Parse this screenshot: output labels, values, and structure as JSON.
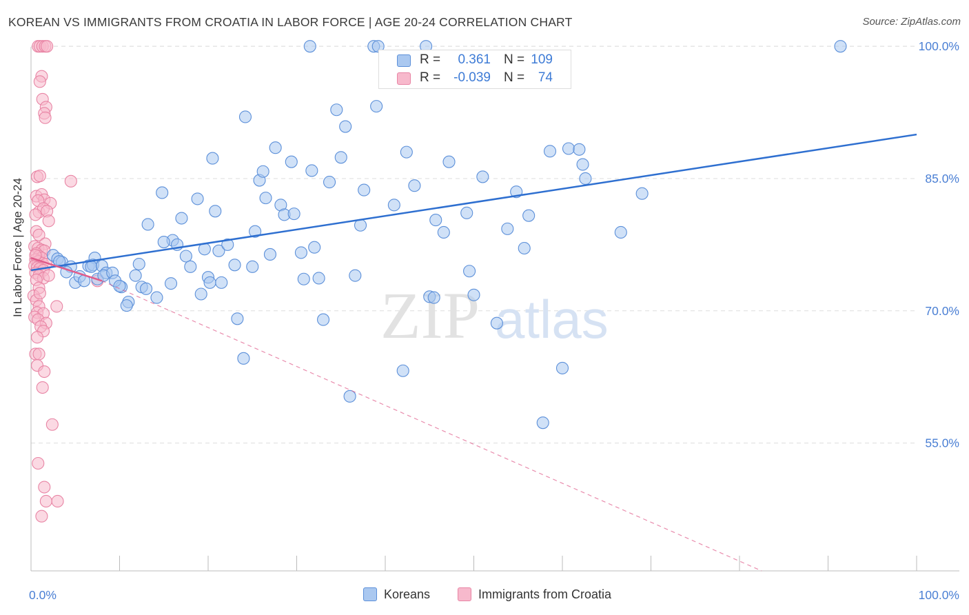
{
  "title": "KOREAN VS IMMIGRANTS FROM CROATIA IN LABOR FORCE | AGE 20-24 CORRELATION CHART",
  "source": "Source: ZipAtlas.com",
  "watermark": {
    "zip": "ZIP",
    "atlas": "atlas"
  },
  "colors": {
    "blue_fill": "#aac8f0",
    "blue_stroke": "#5b8fd9",
    "blue_line": "#2e6fd0",
    "pink_fill": "#f7b9cc",
    "pink_stroke": "#e884a4",
    "pink_line": "#e05b8a",
    "tick_label": "#4a7fd4",
    "grid": "#dddddd"
  },
  "legend": {
    "rows": [
      {
        "r_label": "R =",
        "r_value": "0.361",
        "n_label": "N =",
        "n_value": "109"
      },
      {
        "r_label": "R =",
        "r_value": "-0.039",
        "n_label": "N =",
        "n_value": "74"
      }
    ]
  },
  "bottom_legend": {
    "koreans": "Koreans",
    "croatia": "Immigrants from Croatia"
  },
  "chart_data": {
    "type": "scatter",
    "title": "KOREAN VS IMMIGRANTS FROM CROATIA IN LABOR FORCE | AGE 20-24 CORRELATION CHART",
    "xlabel": "",
    "ylabel": "In Labor Force | Age 20-24",
    "xlim": [
      0,
      100
    ],
    "ylim": [
      40.5,
      101.5
    ],
    "x_tick_labels": [
      "0.0%",
      "100.0%"
    ],
    "y_ticks": [
      55,
      70,
      85,
      100
    ],
    "y_tick_labels": [
      "55.0%",
      "70.0%",
      "85.0%",
      "100.0%"
    ],
    "grid": true,
    "legend_position": "top-center",
    "series": [
      {
        "name": "Koreans",
        "trend": {
          "x0": 0,
          "y0": 74.6,
          "x1": 100,
          "y1": 90.0,
          "style": "solid"
        },
        "points": [
          [
            2.5,
            76.3
          ],
          [
            3.0,
            75.9
          ],
          [
            3.5,
            75.5
          ],
          [
            4.5,
            75.0
          ],
          [
            4.0,
            74.4
          ],
          [
            5.0,
            73.2
          ],
          [
            6.5,
            75.1
          ],
          [
            7.2,
            76.0
          ],
          [
            7.0,
            75.2
          ],
          [
            6.8,
            75.0
          ],
          [
            8.0,
            75.1
          ],
          [
            7.5,
            73.6
          ],
          [
            8.5,
            74.3
          ],
          [
            8.2,
            74.0
          ],
          [
            9.2,
            74.3
          ],
          [
            10.2,
            72.7
          ],
          [
            9.5,
            73.4
          ],
          [
            11.0,
            71.0
          ],
          [
            10.8,
            70.6
          ],
          [
            12.2,
            75.3
          ],
          [
            11.8,
            74.0
          ],
          [
            12.5,
            72.7
          ],
          [
            13.0,
            72.5
          ],
          [
            14.2,
            71.5
          ],
          [
            13.2,
            79.8
          ],
          [
            14.8,
            83.4
          ],
          [
            16.0,
            78.0
          ],
          [
            15.8,
            73.1
          ],
          [
            16.5,
            77.5
          ],
          [
            17.0,
            80.5
          ],
          [
            17.5,
            76.2
          ],
          [
            18.0,
            75.0
          ],
          [
            18.8,
            82.7
          ],
          [
            19.2,
            71.9
          ],
          [
            19.6,
            77.0
          ],
          [
            20.0,
            73.8
          ],
          [
            20.2,
            73.2
          ],
          [
            20.8,
            81.3
          ],
          [
            21.2,
            76.8
          ],
          [
            21.5,
            73.2
          ],
          [
            22.2,
            77.5
          ],
          [
            23.0,
            75.2
          ],
          [
            23.3,
            69.1
          ],
          [
            24.0,
            64.6
          ],
          [
            24.2,
            92.0
          ],
          [
            25.0,
            75.0
          ],
          [
            25.3,
            79.0
          ],
          [
            25.8,
            84.8
          ],
          [
            26.2,
            85.8
          ],
          [
            27.0,
            76.4
          ],
          [
            27.6,
            88.5
          ],
          [
            28.2,
            82.0
          ],
          [
            28.6,
            80.9
          ],
          [
            29.4,
            86.9
          ],
          [
            29.7,
            81.0
          ],
          [
            30.5,
            76.6
          ],
          [
            30.8,
            73.6
          ],
          [
            31.7,
            85.9
          ],
          [
            32.0,
            77.2
          ],
          [
            32.5,
            73.7
          ],
          [
            31.5,
            100.0
          ],
          [
            33.0,
            69.0
          ],
          [
            33.7,
            84.6
          ],
          [
            34.5,
            92.8
          ],
          [
            35.0,
            87.4
          ],
          [
            35.5,
            90.9
          ],
          [
            36.6,
            74.0
          ],
          [
            37.2,
            79.7
          ],
          [
            37.6,
            83.7
          ],
          [
            39.0,
            93.2
          ],
          [
            38.7,
            100.0
          ],
          [
            39.2,
            100.0
          ],
          [
            41.0,
            82.0
          ],
          [
            42.4,
            88.0
          ],
          [
            42.0,
            63.2
          ],
          [
            43.3,
            84.2
          ],
          [
            45.0,
            71.6
          ],
          [
            45.5,
            71.5
          ],
          [
            45.7,
            80.3
          ],
          [
            46.6,
            78.9
          ],
          [
            47.2,
            86.9
          ],
          [
            49.2,
            81.1
          ],
          [
            49.5,
            74.5
          ],
          [
            50.0,
            71.8
          ],
          [
            51.0,
            85.2
          ],
          [
            52.6,
            68.6
          ],
          [
            53.8,
            79.3
          ],
          [
            54.8,
            83.5
          ],
          [
            55.7,
            77.1
          ],
          [
            56.2,
            80.8
          ],
          [
            60.0,
            63.5
          ],
          [
            58.6,
            88.1
          ],
          [
            60.7,
            88.4
          ],
          [
            61.9,
            88.3
          ],
          [
            62.3,
            86.6
          ],
          [
            62.6,
            85.0
          ],
          [
            66.6,
            78.9
          ],
          [
            69.0,
            83.3
          ],
          [
            91.4,
            100.0
          ],
          [
            57.8,
            57.3
          ],
          [
            36.0,
            60.3
          ],
          [
            26.5,
            82.8
          ],
          [
            15.0,
            77.8
          ],
          [
            10.0,
            72.8
          ],
          [
            5.5,
            73.9
          ],
          [
            6.0,
            73.4
          ],
          [
            3.2,
            75.6
          ],
          [
            20.5,
            87.3
          ],
          [
            44.6,
            100.0
          ]
        ]
      },
      {
        "name": "Immigrants from Croatia",
        "trend_solid": {
          "x0": 0,
          "y0": 76.0,
          "x1": 8,
          "y1": 73.4,
          "style": "solid"
        },
        "trend_dashed": {
          "x0": 8,
          "y0": 73.4,
          "x1": 82.5,
          "y1": 40.5,
          "style": "dashed"
        },
        "points": [
          [
            0.8,
            100.0
          ],
          [
            1.0,
            100.0
          ],
          [
            1.3,
            100.0
          ],
          [
            1.6,
            100.0
          ],
          [
            1.8,
            100.0
          ],
          [
            1.2,
            96.6
          ],
          [
            1.0,
            96.0
          ],
          [
            1.3,
            94.0
          ],
          [
            1.7,
            93.1
          ],
          [
            1.5,
            92.4
          ],
          [
            1.6,
            91.9
          ],
          [
            0.7,
            85.2
          ],
          [
            1.0,
            85.3
          ],
          [
            4.5,
            84.7
          ],
          [
            0.6,
            83.0
          ],
          [
            1.2,
            83.2
          ],
          [
            1.5,
            82.6
          ],
          [
            2.2,
            82.2
          ],
          [
            0.8,
            82.5
          ],
          [
            0.9,
            81.2
          ],
          [
            1.4,
            81.6
          ],
          [
            1.8,
            81.3
          ],
          [
            0.5,
            80.9
          ],
          [
            2.0,
            80.2
          ],
          [
            0.6,
            79.0
          ],
          [
            0.9,
            78.6
          ],
          [
            1.6,
            77.6
          ],
          [
            0.4,
            77.3
          ],
          [
            0.8,
            77.1
          ],
          [
            1.2,
            76.9
          ],
          [
            1.5,
            76.8
          ],
          [
            0.6,
            76.5
          ],
          [
            0.9,
            76.2
          ],
          [
            1.2,
            76.0
          ],
          [
            0.5,
            75.8
          ],
          [
            0.8,
            75.6
          ],
          [
            1.3,
            75.4
          ],
          [
            1.7,
            75.3
          ],
          [
            0.4,
            75.1
          ],
          [
            0.7,
            74.9
          ],
          [
            1.0,
            74.8
          ],
          [
            1.4,
            74.6
          ],
          [
            0.5,
            74.3
          ],
          [
            0.9,
            74.0
          ],
          [
            1.4,
            73.7
          ],
          [
            2.0,
            74.0
          ],
          [
            0.6,
            73.5
          ],
          [
            7.5,
            73.4
          ],
          [
            0.9,
            72.6
          ],
          [
            0.3,
            71.7
          ],
          [
            0.6,
            71.2
          ],
          [
            0.9,
            70.5
          ],
          [
            2.9,
            70.5
          ],
          [
            0.7,
            69.8
          ],
          [
            1.4,
            69.7
          ],
          [
            0.4,
            69.3
          ],
          [
            0.8,
            69.0
          ],
          [
            1.7,
            68.6
          ],
          [
            1.1,
            68.2
          ],
          [
            1.4,
            67.7
          ],
          [
            0.7,
            67.0
          ],
          [
            0.5,
            65.1
          ],
          [
            0.9,
            65.1
          ],
          [
            0.7,
            63.8
          ],
          [
            1.5,
            63.1
          ],
          [
            1.3,
            61.3
          ],
          [
            2.4,
            57.1
          ],
          [
            0.8,
            52.7
          ],
          [
            1.5,
            50.0
          ],
          [
            1.7,
            48.4
          ],
          [
            3.0,
            48.4
          ],
          [
            1.2,
            46.7
          ],
          [
            0.5,
            76.3
          ],
          [
            1.0,
            72.0
          ]
        ]
      }
    ]
  }
}
